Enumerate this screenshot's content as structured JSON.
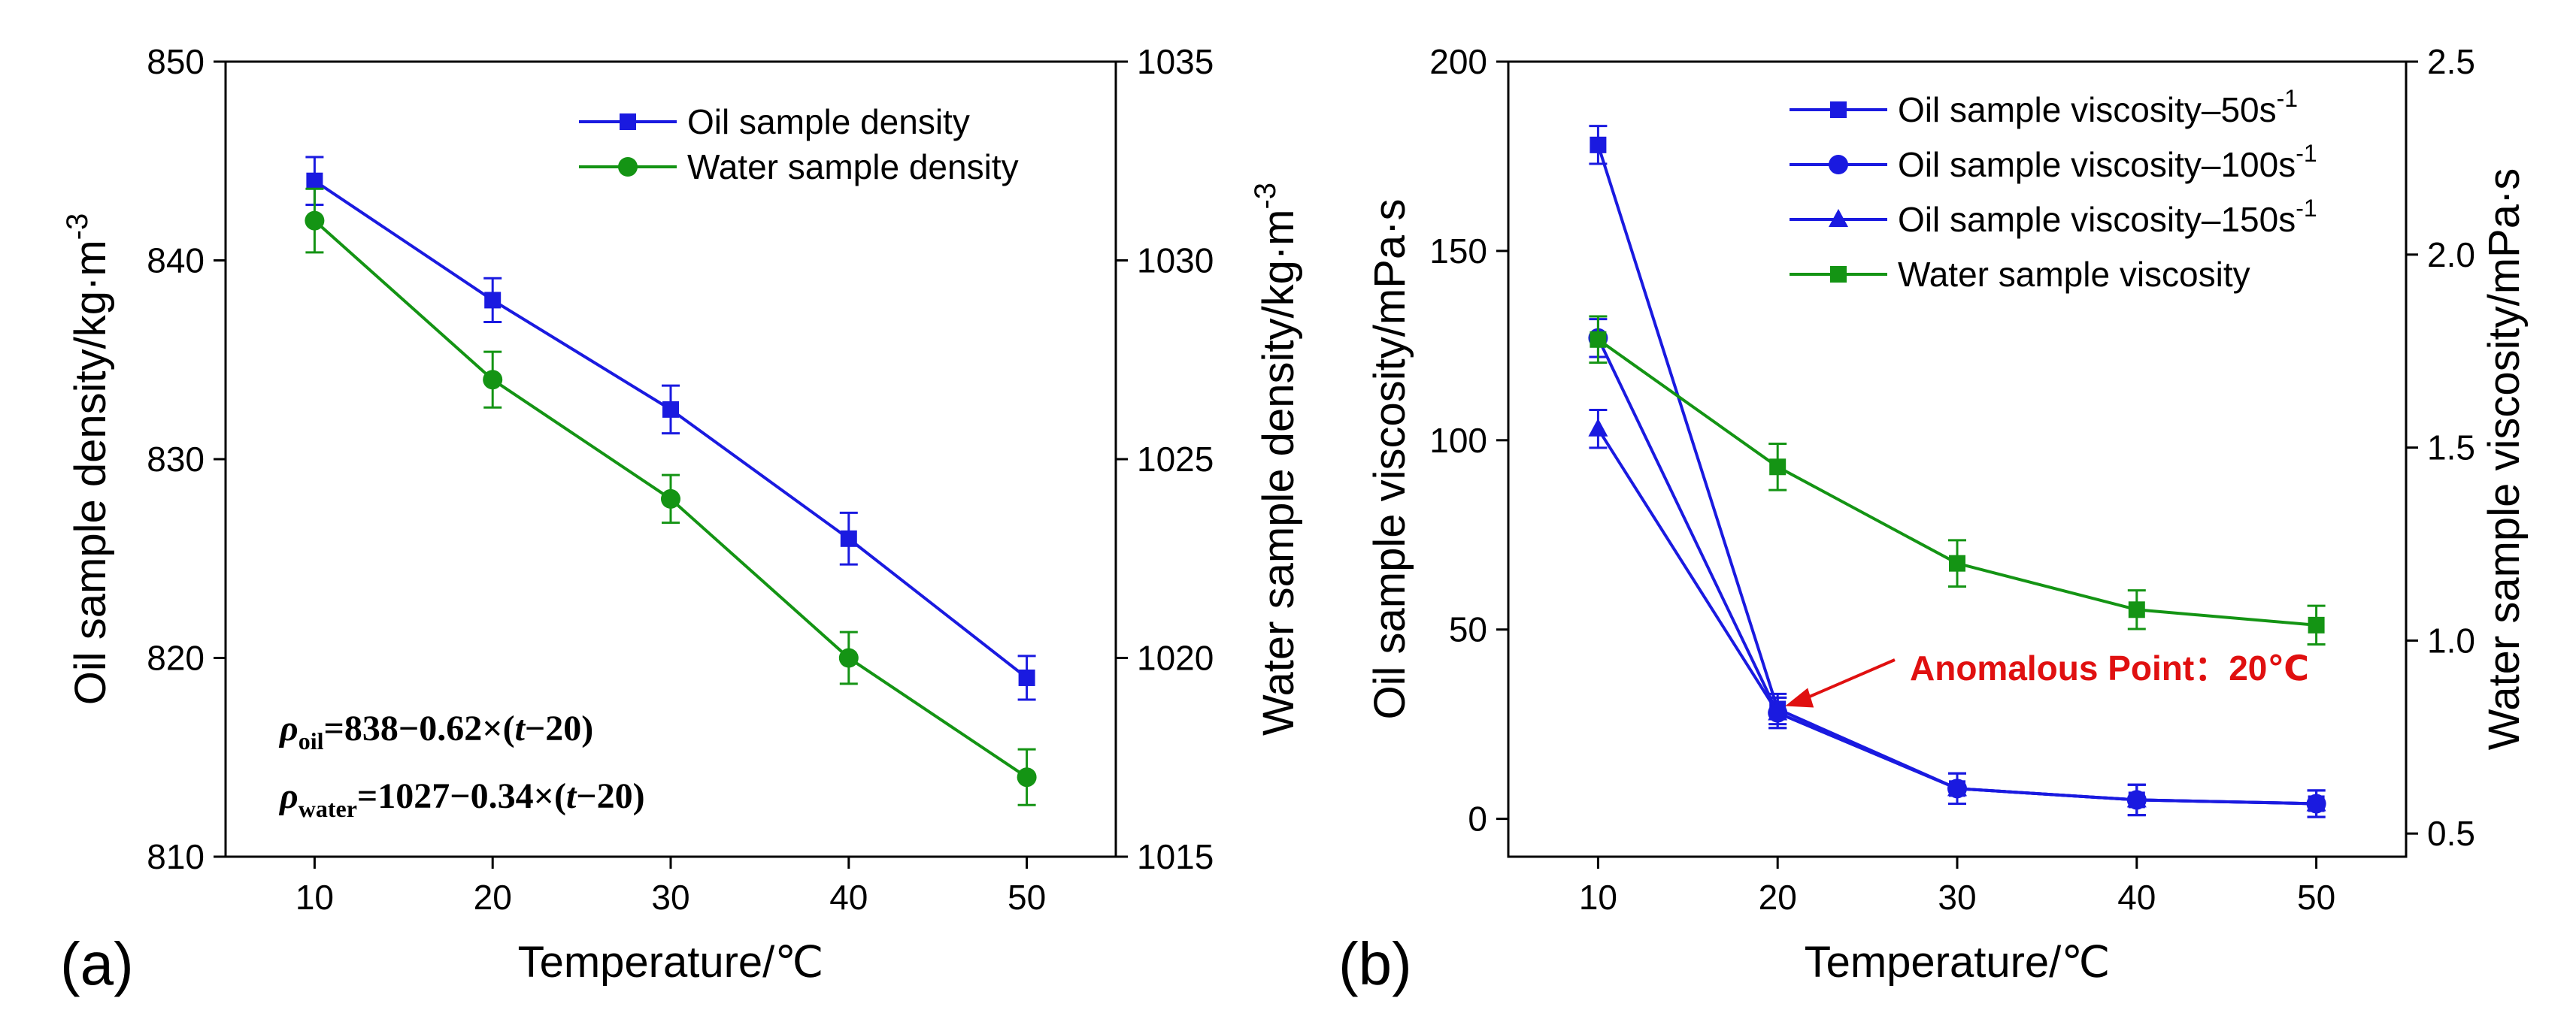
{
  "colors": {
    "oil": "#1a1ae0",
    "water": "#149414",
    "annotation": "#e01010",
    "axis": "#000000"
  },
  "chart_data": [
    {
      "panel_label": "(a)",
      "type": "line",
      "xlabel": "Temperature/℃",
      "x": [
        10,
        20,
        30,
        40,
        50
      ],
      "xlim": [
        5,
        55
      ],
      "xticks": [
        10,
        20,
        30,
        40,
        50
      ],
      "left_axis": {
        "label_base": "Oil sample density/kg·m",
        "label_sup": "-3",
        "ylim": [
          810,
          850
        ],
        "ticks": [
          810,
          820,
          830,
          840,
          850
        ]
      },
      "right_axis": {
        "label_base": "Water sample density/kg·m",
        "label_sup": "-3",
        "ylim": [
          1015,
          1035
        ],
        "ticks": [
          1015,
          1020,
          1025,
          1030,
          1035
        ]
      },
      "legend_position": "top-right",
      "series": [
        {
          "name": "Oil sample density",
          "axis": "left",
          "marker": "square",
          "color": "#1a1ae0",
          "values": [
            844,
            838,
            832.5,
            826,
            819
          ],
          "errors": [
            1.2,
            1.1,
            1.2,
            1.3,
            1.1
          ]
        },
        {
          "name": "Water sample density",
          "axis": "right",
          "marker": "circle",
          "color": "#149414",
          "values": [
            1031,
            1027,
            1024,
            1020,
            1017
          ],
          "errors": [
            0.8,
            0.7,
            0.6,
            0.65,
            0.7
          ]
        }
      ],
      "equations": [
        {
          "sym": "ρ",
          "sub": "oil",
          "rest": "=838−0.62×(",
          "var": "t",
          "tail": "−20)"
        },
        {
          "sym": "ρ",
          "sub": "water",
          "rest": "=1027−0.34×(",
          "var": "t",
          "tail": "−20)"
        }
      ]
    },
    {
      "panel_label": "(b)",
      "type": "line",
      "xlabel": "Temperature/℃",
      "x": [
        10,
        20,
        30,
        40,
        50
      ],
      "xlim": [
        5,
        55
      ],
      "xticks": [
        10,
        20,
        30,
        40,
        50
      ],
      "left_axis": {
        "label_base": "Oil sample viscosity/mPa·s",
        "label_sup": "",
        "ylim": [
          -10,
          200
        ],
        "ticks": [
          0,
          50,
          100,
          150,
          200
        ]
      },
      "right_axis": {
        "label_base": "Water sample viscosity/mPa·s",
        "label_sup": "",
        "ylim": [
          0.44,
          2.5
        ],
        "ticks": [
          0.5,
          1.0,
          1.5,
          2.0,
          2.5
        ],
        "tick_labels": [
          "0.5",
          "1.0",
          "1.5",
          "2.0",
          "2.5"
        ]
      },
      "legend_position": "top-right",
      "series": [
        {
          "name": "Oil sample viscosity–50s",
          "name_sup": "-1",
          "axis": "left",
          "marker": "square",
          "color": "#1a1ae0",
          "values": [
            178,
            29,
            8,
            5,
            4
          ],
          "errors": [
            5,
            4,
            4,
            4,
            3.5
          ]
        },
        {
          "name": "Oil sample viscosity–100s",
          "name_sup": "-1",
          "axis": "left",
          "marker": "circle",
          "color": "#1a1ae0",
          "values": [
            127,
            28,
            8,
            5,
            4
          ],
          "errors": [
            5,
            4,
            4,
            4,
            3.5
          ]
        },
        {
          "name": "Oil sample viscosity–150s",
          "name_sup": "-1",
          "axis": "left",
          "marker": "triangle",
          "color": "#1a1ae0",
          "values": [
            103,
            28,
            8,
            5,
            4
          ],
          "errors": [
            5,
            4,
            4,
            4,
            3.5
          ]
        },
        {
          "name": "Water sample viscosity",
          "name_sup": "",
          "axis": "right",
          "marker": "square",
          "color": "#149414",
          "values": [
            1.78,
            1.45,
            1.2,
            1.08,
            1.04
          ],
          "errors": [
            0.06,
            0.06,
            0.06,
            0.05,
            0.05
          ]
        }
      ],
      "annotation": {
        "text": "Anomalous Point：20℃",
        "x": 20,
        "y": 29
      }
    }
  ]
}
